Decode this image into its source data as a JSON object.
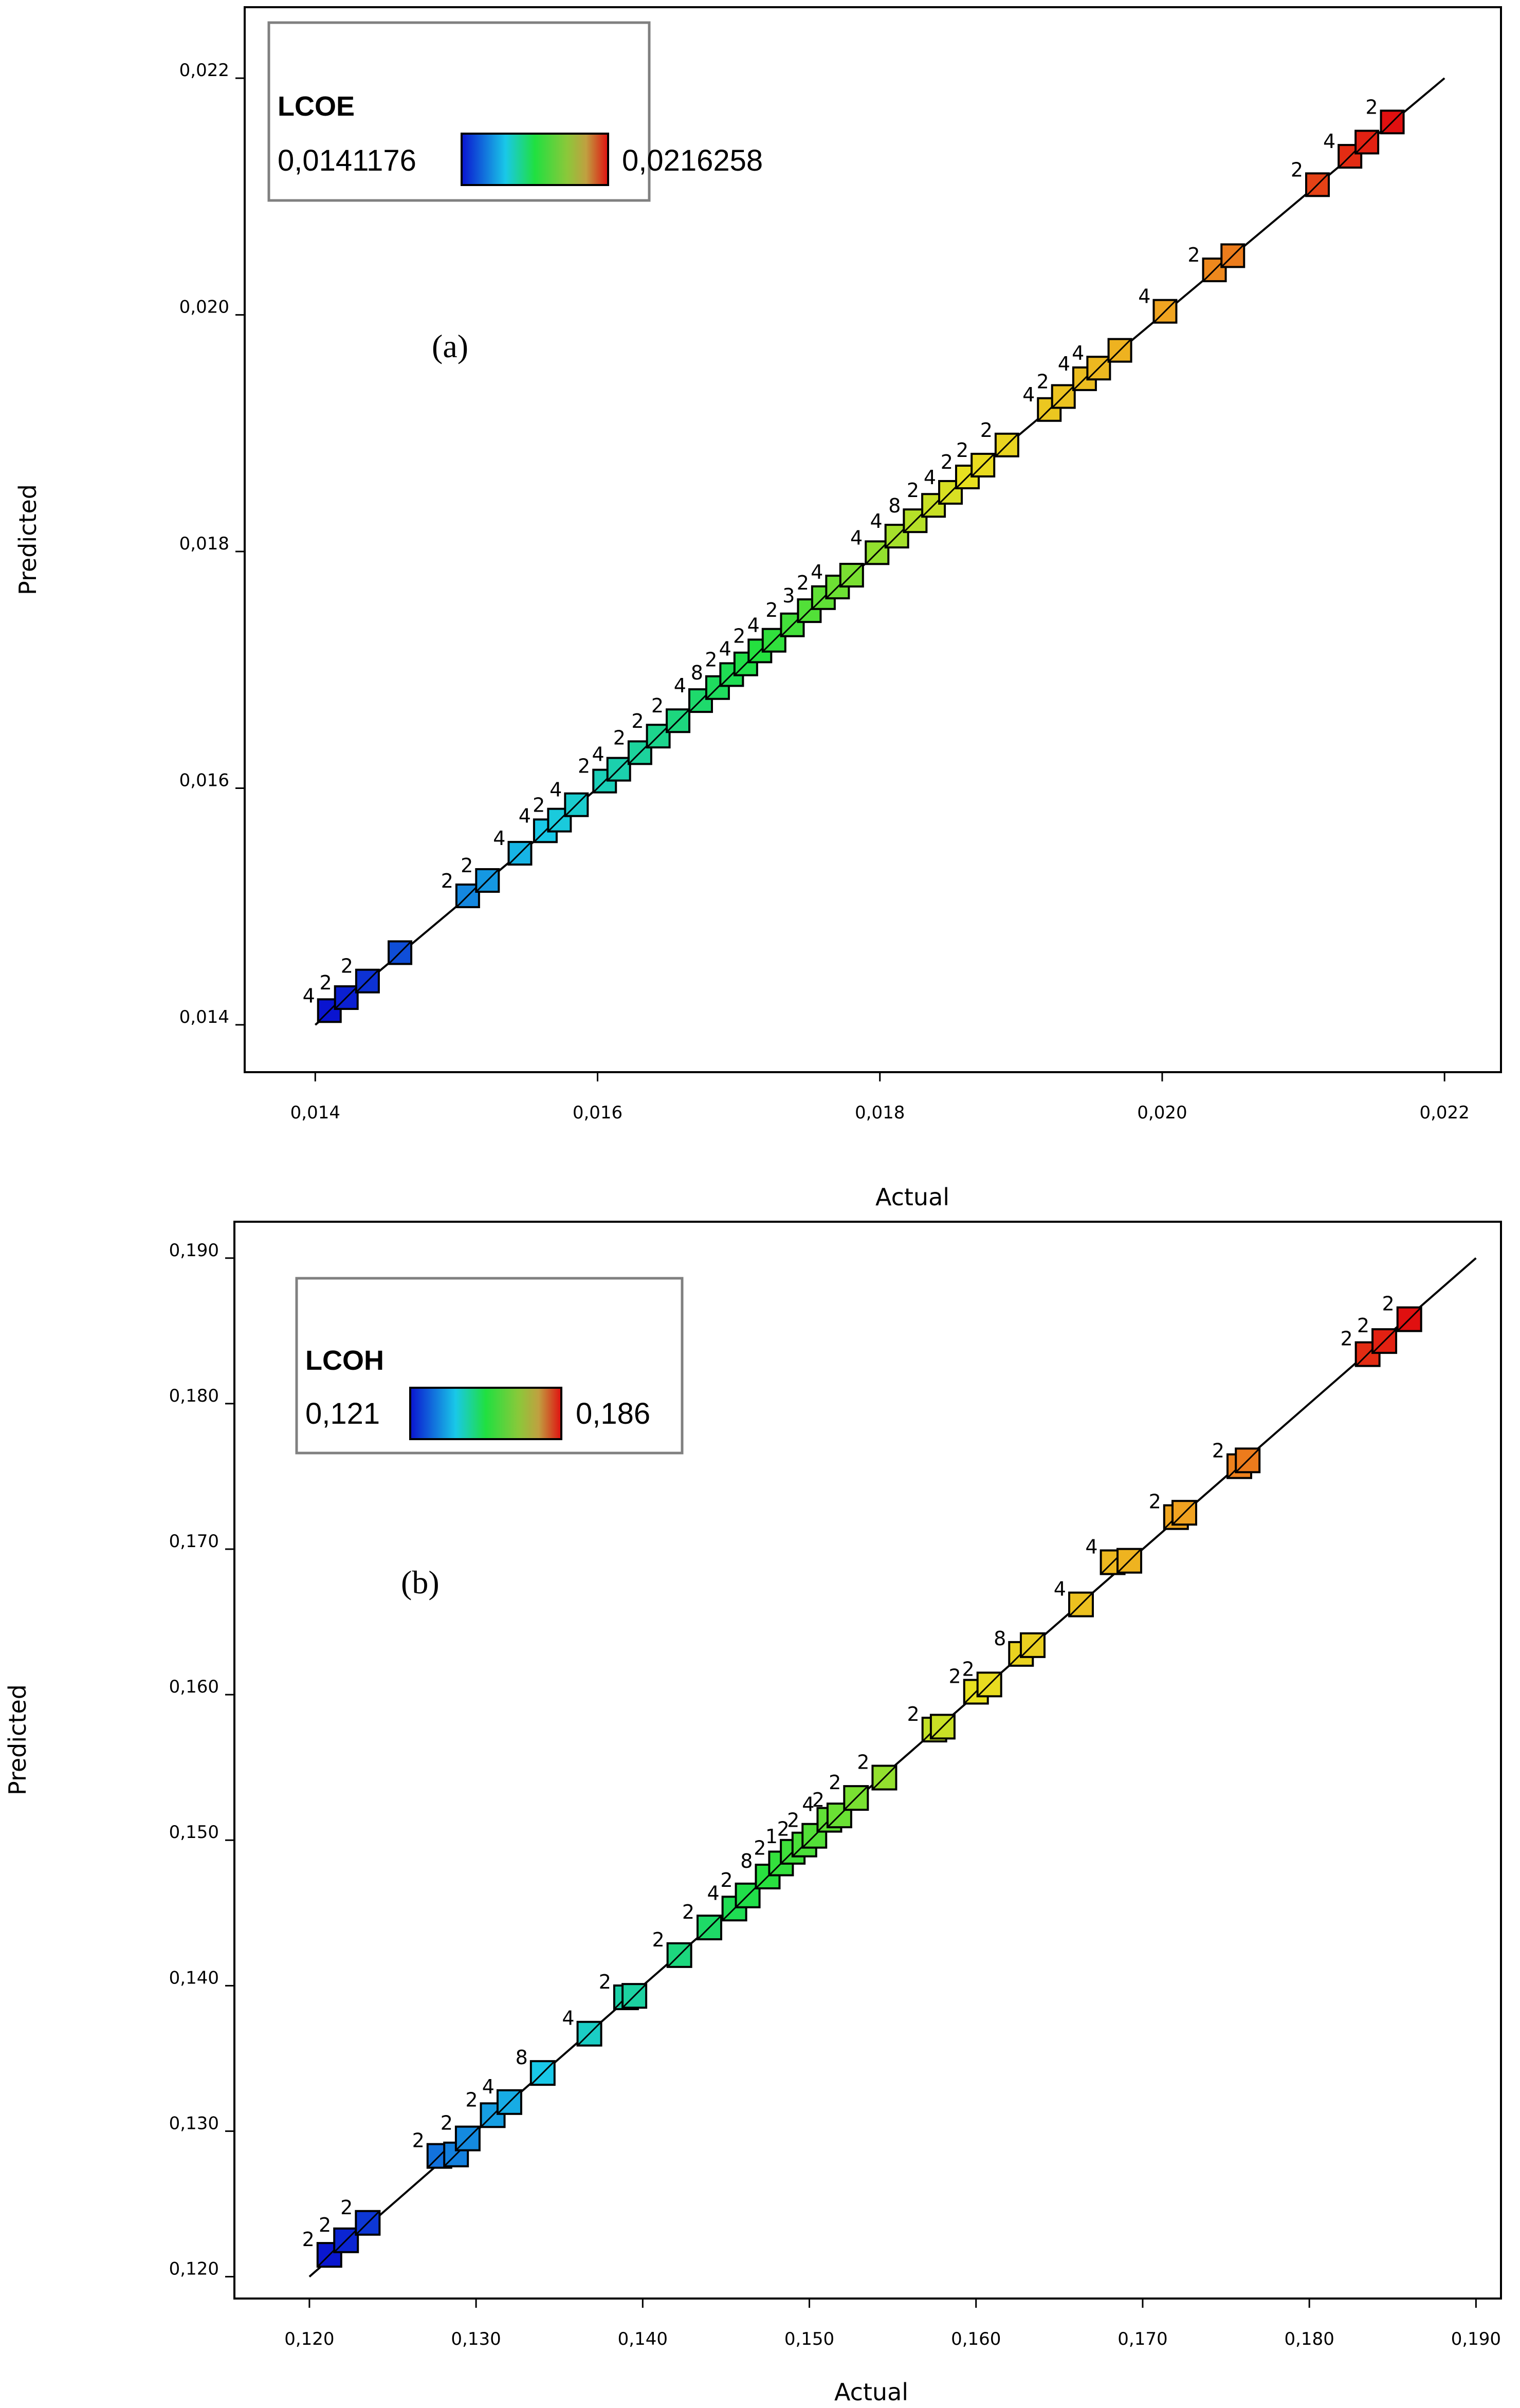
{
  "chart_data": [
    {
      "type": "scatter",
      "panel_label": "(a)",
      "xlabel": "Actual",
      "ylabel": "Predicted",
      "xlim": [
        0.0135,
        0.0224
      ],
      "ylim": [
        0.0136,
        0.0226
      ],
      "x_ticks": [
        0.014,
        0.016,
        0.018,
        0.02,
        0.022
      ],
      "y_ticks": [
        0.014,
        0.016,
        0.018,
        0.02,
        0.022
      ],
      "x_tick_labels": [
        "0,014",
        "0,016",
        "0,018",
        "0,020",
        "0,022"
      ],
      "y_tick_labels": [
        "0,014",
        "0,016",
        "0,018",
        "0,020",
        "0,022"
      ],
      "reference_line": [
        0.014,
        0.022
      ],
      "grid": false,
      "legend": {
        "title": "LCOE",
        "min_label": "0,0141176",
        "max_label": "0,0216258",
        "placement": "top-left",
        "min": 0.0141176,
        "max": 0.0216258
      },
      "colormap": [
        "#0a14d0",
        "#19c8e8",
        "#20e040",
        "#e8e020",
        "#f0a020",
        "#e01010"
      ],
      "points": [
        {
          "x": 0.0141,
          "y": 0.01412,
          "n": "4"
        },
        {
          "x": 0.01422,
          "y": 0.01423,
          "n": "2"
        },
        {
          "x": 0.01437,
          "y": 0.01437,
          "n": "2"
        },
        {
          "x": 0.0146,
          "y": 0.01461,
          "n": ""
        },
        {
          "x": 0.01508,
          "y": 0.01509,
          "n": "2"
        },
        {
          "x": 0.01522,
          "y": 0.01522,
          "n": "2"
        },
        {
          "x": 0.01545,
          "y": 0.01545,
          "n": "4"
        },
        {
          "x": 0.01563,
          "y": 0.01564,
          "n": "4"
        },
        {
          "x": 0.01573,
          "y": 0.01573,
          "n": "2"
        },
        {
          "x": 0.01585,
          "y": 0.01586,
          "n": "4"
        },
        {
          "x": 0.01605,
          "y": 0.01606,
          "n": "2"
        },
        {
          "x": 0.01615,
          "y": 0.01616,
          "n": "4"
        },
        {
          "x": 0.0163,
          "y": 0.0163,
          "n": "2"
        },
        {
          "x": 0.01643,
          "y": 0.01644,
          "n": "2"
        },
        {
          "x": 0.01657,
          "y": 0.01657,
          "n": "2"
        },
        {
          "x": 0.01673,
          "y": 0.01674,
          "n": "4"
        },
        {
          "x": 0.01685,
          "y": 0.01685,
          "n": "8"
        },
        {
          "x": 0.01695,
          "y": 0.01696,
          "n": "2"
        },
        {
          "x": 0.01705,
          "y": 0.01705,
          "n": "4"
        },
        {
          "x": 0.01715,
          "y": 0.01716,
          "n": "2"
        },
        {
          "x": 0.01725,
          "y": 0.01725,
          "n": "4"
        },
        {
          "x": 0.01738,
          "y": 0.01738,
          "n": "2"
        },
        {
          "x": 0.0175,
          "y": 0.0175,
          "n": "3"
        },
        {
          "x": 0.0176,
          "y": 0.01761,
          "n": "2"
        },
        {
          "x": 0.0177,
          "y": 0.0177,
          "n": "4"
        },
        {
          "x": 0.0178,
          "y": 0.0178,
          "n": ""
        },
        {
          "x": 0.01798,
          "y": 0.01799,
          "n": "4"
        },
        {
          "x": 0.01812,
          "y": 0.01813,
          "n": "4"
        },
        {
          "x": 0.01825,
          "y": 0.01826,
          "n": "8"
        },
        {
          "x": 0.01838,
          "y": 0.01839,
          "n": "2"
        },
        {
          "x": 0.0185,
          "y": 0.0185,
          "n": "4"
        },
        {
          "x": 0.01862,
          "y": 0.01863,
          "n": "2"
        },
        {
          "x": 0.01873,
          "y": 0.01873,
          "n": "2"
        },
        {
          "x": 0.0189,
          "y": 0.0189,
          "n": "2"
        },
        {
          "x": 0.0192,
          "y": 0.0192,
          "n": "4"
        },
        {
          "x": 0.0193,
          "y": 0.01931,
          "n": "2"
        },
        {
          "x": 0.01945,
          "y": 0.01946,
          "n": "4"
        },
        {
          "x": 0.01955,
          "y": 0.01955,
          "n": "4"
        },
        {
          "x": 0.0197,
          "y": 0.0197,
          "n": ""
        },
        {
          "x": 0.02002,
          "y": 0.02003,
          "n": "4"
        },
        {
          "x": 0.02037,
          "y": 0.02038,
          "n": "2"
        },
        {
          "x": 0.0205,
          "y": 0.0205,
          "n": ""
        },
        {
          "x": 0.0211,
          "y": 0.0211,
          "n": "2"
        },
        {
          "x": 0.02133,
          "y": 0.02134,
          "n": "4"
        },
        {
          "x": 0.02145,
          "y": 0.02146,
          "n": ""
        },
        {
          "x": 0.02163,
          "y": 0.02163,
          "n": "2"
        }
      ]
    },
    {
      "type": "scatter",
      "panel_label": "(b)",
      "xlabel": "Actual",
      "ylabel": "Predicted",
      "xlim": [
        0.1155,
        0.1915
      ],
      "ylim": [
        0.1185,
        0.1925
      ],
      "x_ticks": [
        0.12,
        0.13,
        0.14,
        0.15,
        0.16,
        0.17,
        0.18,
        0.19
      ],
      "y_ticks": [
        0.12,
        0.13,
        0.14,
        0.15,
        0.16,
        0.17,
        0.18,
        0.19
      ],
      "x_tick_labels": [
        "0,120",
        "0,130",
        "0,140",
        "0,150",
        "0,160",
        "0,170",
        "0,180",
        "0,190"
      ],
      "y_tick_labels": [
        "0,120",
        "0,130",
        "0,140",
        "0,150",
        "0,160",
        "0,170",
        "0,180",
        "0,190"
      ],
      "reference_line": [
        0.12,
        0.19
      ],
      "grid": false,
      "legend": {
        "title": "LCOH",
        "min_label": "0,121",
        "max_label": "0,186",
        "placement": "top-left",
        "min": 0.121,
        "max": 0.186
      },
      "colormap": [
        "#0a14d0",
        "#19c8e8",
        "#20e040",
        "#e8e020",
        "#f0a020",
        "#e01010"
      ],
      "points": [
        {
          "x": 0.1212,
          "y": 0.1215,
          "n": "2"
        },
        {
          "x": 0.1222,
          "y": 0.1225,
          "n": "2"
        },
        {
          "x": 0.1235,
          "y": 0.1237,
          "n": "2"
        },
        {
          "x": 0.1278,
          "y": 0.1283,
          "n": "2"
        },
        {
          "x": 0.1288,
          "y": 0.1284,
          "n": ""
        },
        {
          "x": 0.1295,
          "y": 0.1295,
          "n": "2"
        },
        {
          "x": 0.131,
          "y": 0.1311,
          "n": "2"
        },
        {
          "x": 0.132,
          "y": 0.132,
          "n": "4"
        },
        {
          "x": 0.134,
          "y": 0.134,
          "n": "8"
        },
        {
          "x": 0.1368,
          "y": 0.1367,
          "n": "4"
        },
        {
          "x": 0.139,
          "y": 0.1392,
          "n": "2"
        },
        {
          "x": 0.1395,
          "y": 0.1393,
          "n": ""
        },
        {
          "x": 0.1422,
          "y": 0.1421,
          "n": "2"
        },
        {
          "x": 0.144,
          "y": 0.144,
          "n": "2"
        },
        {
          "x": 0.1455,
          "y": 0.1453,
          "n": "4"
        },
        {
          "x": 0.1463,
          "y": 0.1462,
          "n": "2"
        },
        {
          "x": 0.1475,
          "y": 0.1475,
          "n": "8"
        },
        {
          "x": 0.1483,
          "y": 0.1484,
          "n": "2"
        },
        {
          "x": 0.149,
          "y": 0.1492,
          "n": "1"
        },
        {
          "x": 0.1497,
          "y": 0.1497,
          "n": "2"
        },
        {
          "x": 0.1503,
          "y": 0.1503,
          "n": "2"
        },
        {
          "x": 0.1512,
          "y": 0.1514,
          "n": "4"
        },
        {
          "x": 0.1518,
          "y": 0.1517,
          "n": "2"
        },
        {
          "x": 0.1528,
          "y": 0.1529,
          "n": "2"
        },
        {
          "x": 0.1545,
          "y": 0.1543,
          "n": "2"
        },
        {
          "x": 0.1575,
          "y": 0.1576,
          "n": "2"
        },
        {
          "x": 0.158,
          "y": 0.1578,
          "n": ""
        },
        {
          "x": 0.16,
          "y": 0.1602,
          "n": "2"
        },
        {
          "x": 0.1608,
          "y": 0.1607,
          "n": "2"
        },
        {
          "x": 0.1627,
          "y": 0.1628,
          "n": "8"
        },
        {
          "x": 0.1634,
          "y": 0.1634,
          "n": ""
        },
        {
          "x": 0.1663,
          "y": 0.1662,
          "n": "4"
        },
        {
          "x": 0.1682,
          "y": 0.1691,
          "n": "4"
        },
        {
          "x": 0.1692,
          "y": 0.1692,
          "n": ""
        },
        {
          "x": 0.172,
          "y": 0.1722,
          "n": "2"
        },
        {
          "x": 0.1725,
          "y": 0.1725,
          "n": ""
        },
        {
          "x": 0.1758,
          "y": 0.1757,
          "n": "2"
        },
        {
          "x": 0.1763,
          "y": 0.1761,
          "n": ""
        },
        {
          "x": 0.1835,
          "y": 0.1834,
          "n": "2"
        },
        {
          "x": 0.1845,
          "y": 0.1843,
          "n": "2"
        },
        {
          "x": 0.186,
          "y": 0.1858,
          "n": "2"
        }
      ]
    }
  ]
}
